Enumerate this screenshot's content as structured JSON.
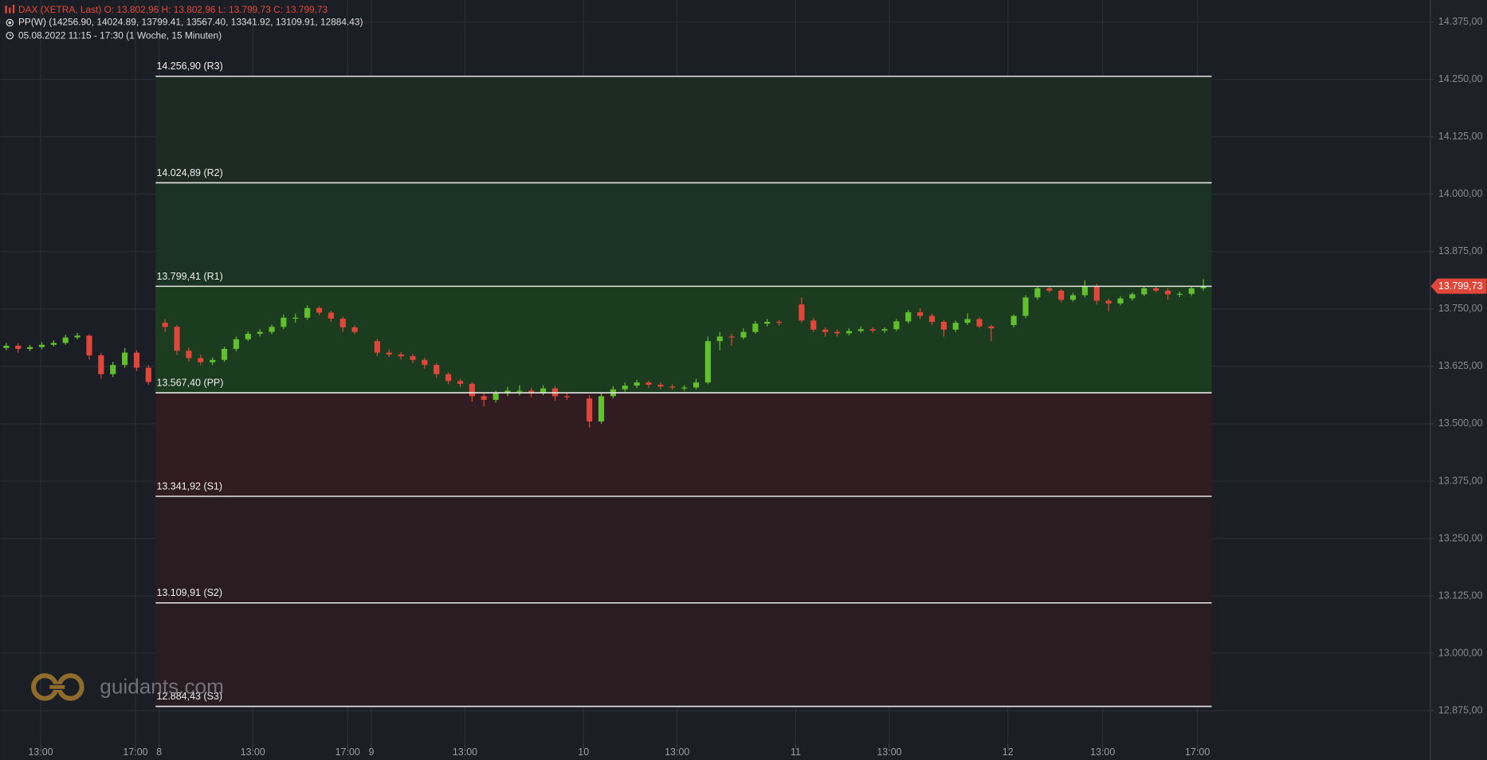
{
  "chart_data": {
    "type": "candlestick",
    "title": "DAX (XETRA, Last)  O: 13.802,96  H: 13.802,96  L: 13.799,73  C: 13.799,73",
    "subtitle": "PP(W)  (14256.90, 14024.89, 13799.41, 13567.40, 13341.92, 13109.91, 12884.43)",
    "period": "05.08.2022 11:15 - 17:30   (1 Woche, 15 Minuten)",
    "watermark": "guidants.com",
    "up_color": "#62bf2e",
    "down_color": "#e0473a",
    "grid": true,
    "xlim": [
      0,
      120.6
    ],
    "ylim": [
      12813,
      14423
    ],
    "xticks": [
      {
        "value": 3.4,
        "label": "13:00"
      },
      {
        "value": 11.4,
        "label": "17:00"
      },
      {
        "value": 13.4,
        "label": "8"
      },
      {
        "value": 21.3,
        "label": "13:00"
      },
      {
        "value": 29.3,
        "label": "17:00"
      },
      {
        "value": 31.3,
        "label": "9"
      },
      {
        "value": 39.2,
        "label": "13:00"
      },
      {
        "value": 49.2,
        "label": "10"
      },
      {
        "value": 57.1,
        "label": "13:00"
      },
      {
        "value": 67.1,
        "label": "11"
      },
      {
        "value": 75.0,
        "label": "13:00"
      },
      {
        "value": 85.0,
        "label": "12"
      },
      {
        "value": 93.0,
        "label": "13:00"
      },
      {
        "value": 101.0,
        "label": "17:00"
      }
    ],
    "yticks": [
      {
        "value": 14375,
        "label": "14.375,00"
      },
      {
        "value": 14250,
        "label": "14.250,00"
      },
      {
        "value": 14125,
        "label": "14.125,00"
      },
      {
        "value": 14000,
        "label": "14.000,00"
      },
      {
        "value": 13875,
        "label": "13.875,00"
      },
      {
        "value": 13750,
        "label": "13.750,00"
      },
      {
        "value": 13625,
        "label": "13.625,00"
      },
      {
        "value": 13500,
        "label": "13.500,00"
      },
      {
        "value": 13375,
        "label": "13.375,00"
      },
      {
        "value": 13250,
        "label": "13.250,00"
      },
      {
        "value": 13125,
        "label": "13.125,00"
      },
      {
        "value": 13000,
        "label": "13.000,00"
      },
      {
        "value": 12875,
        "label": "12.875,00"
      }
    ],
    "last_price": {
      "value": 13799.73,
      "label": "13.799,73"
    },
    "pivot_x": [
      13.1,
      102.2
    ],
    "pivots": [
      {
        "label": "14.256,90 (R3)",
        "value": 14256.9,
        "color": "#1d2b22"
      },
      {
        "label": "14.024,89 (R2)",
        "value": 14024.89,
        "color": "#1b3322"
      },
      {
        "label": "13.799,41 (R1)",
        "value": 13799.41,
        "color": "#1c3c1f"
      },
      {
        "label": "13.567,40 (PP)",
        "value": 13567.4,
        "color": "#3a1d21"
      },
      {
        "label": "13.341,92 (S1)",
        "value": 13341.92,
        "color": "#311c21"
      },
      {
        "label": "13.109,91 (S2)",
        "value": 13109.91,
        "color": "#2a1d22"
      },
      {
        "label": "12.884,43 (S3)",
        "value": 12884.43,
        "color": "#2a1d22"
      }
    ],
    "x": [
      0.5,
      1.5,
      2.5,
      3.5,
      4.5,
      5.5,
      6.5,
      7.5,
      8.5,
      9.5,
      10.5,
      11.5,
      12.5,
      13.9,
      14.9,
      15.9,
      16.9,
      17.9,
      18.9,
      19.9,
      20.9,
      21.9,
      22.9,
      23.9,
      24.9,
      25.9,
      26.9,
      27.9,
      28.9,
      29.9,
      31.8,
      32.8,
      33.8,
      34.8,
      35.8,
      36.8,
      37.8,
      38.8,
      39.8,
      40.8,
      41.8,
      42.8,
      43.8,
      44.8,
      45.8,
      46.8,
      47.8,
      49.7,
      50.7,
      51.7,
      52.7,
      53.7,
      54.7,
      55.7,
      56.7,
      57.7,
      58.7,
      59.7,
      60.7,
      61.7,
      62.7,
      63.7,
      64.7,
      65.7,
      67.6,
      68.6,
      69.6,
      70.6,
      71.6,
      72.6,
      73.6,
      74.6,
      75.6,
      76.6,
      77.6,
      78.6,
      79.6,
      80.6,
      81.6,
      82.6,
      83.6,
      85.5,
      86.5,
      87.5,
      88.5,
      89.5,
      90.5,
      91.5,
      92.5,
      93.5,
      94.5,
      95.5,
      96.5,
      97.5,
      98.5,
      99.5,
      100.5,
      101.5
    ],
    "ohlc": [
      [
        13665,
        13676,
        13660,
        13670
      ],
      [
        13670,
        13675,
        13655,
        13663
      ],
      [
        13663,
        13672,
        13658,
        13667
      ],
      [
        13667,
        13678,
        13662,
        13672
      ],
      [
        13672,
        13682,
        13668,
        13676
      ],
      [
        13676,
        13694,
        13672,
        13688
      ],
      [
        13688,
        13698,
        13684,
        13692
      ],
      [
        13692,
        13695,
        13640,
        13649
      ],
      [
        13649,
        13655,
        13598,
        13608
      ],
      [
        13608,
        13635,
        13602,
        13628
      ],
      [
        13628,
        13665,
        13622,
        13655
      ],
      [
        13655,
        13660,
        13615,
        13622
      ],
      [
        13622,
        13628,
        13585,
        13591
      ],
      [
        13720,
        13728,
        13700,
        13711
      ],
      [
        13711,
        13715,
        13650,
        13659
      ],
      [
        13659,
        13666,
        13636,
        13643
      ],
      [
        13643,
        13650,
        13628,
        13634
      ],
      [
        13634,
        13645,
        13628,
        13639
      ],
      [
        13639,
        13668,
        13635,
        13663
      ],
      [
        13663,
        13690,
        13658,
        13684
      ],
      [
        13684,
        13702,
        13680,
        13696
      ],
      [
        13696,
        13706,
        13690,
        13700
      ],
      [
        13700,
        13716,
        13695,
        13711
      ],
      [
        13711,
        13738,
        13706,
        13731
      ],
      [
        13731,
        13740,
        13720,
        13731
      ],
      [
        13731,
        13758,
        13726,
        13752
      ],
      [
        13752,
        13756,
        13736,
        13742
      ],
      [
        13742,
        13746,
        13722,
        13729
      ],
      [
        13729,
        13733,
        13700,
        13710
      ],
      [
        13710,
        13714,
        13695,
        13700
      ],
      [
        13680,
        13685,
        13648,
        13655
      ],
      [
        13655,
        13662,
        13645,
        13651
      ],
      [
        13651,
        13656,
        13640,
        13647
      ],
      [
        13647,
        13652,
        13632,
        13639
      ],
      [
        13639,
        13644,
        13620,
        13628
      ],
      [
        13628,
        13632,
        13600,
        13608
      ],
      [
        13608,
        13612,
        13586,
        13593
      ],
      [
        13593,
        13598,
        13580,
        13587
      ],
      [
        13587,
        13590,
        13548,
        13560
      ],
      [
        13560,
        13566,
        13538,
        13552
      ],
      [
        13552,
        13572,
        13546,
        13566
      ],
      [
        13566,
        13580,
        13560,
        13572
      ],
      [
        13572,
        13584,
        13562,
        13572
      ],
      [
        13572,
        13578,
        13558,
        13568
      ],
      [
        13568,
        13584,
        13562,
        13577
      ],
      [
        13577,
        13582,
        13550,
        13560
      ],
      [
        13560,
        13566,
        13552,
        13558
      ],
      [
        13555,
        13562,
        13492,
        13505
      ],
      [
        13505,
        13566,
        13500,
        13560
      ],
      [
        13560,
        13582,
        13555,
        13575
      ],
      [
        13575,
        13590,
        13570,
        13583
      ],
      [
        13583,
        13596,
        13578,
        13590
      ],
      [
        13590,
        13594,
        13578,
        13585
      ],
      [
        13585,
        13590,
        13575,
        13581
      ],
      [
        13581,
        13586,
        13574,
        13579
      ],
      [
        13579,
        13584,
        13572,
        13579
      ],
      [
        13579,
        13598,
        13575,
        13590
      ],
      [
        13590,
        13690,
        13586,
        13680
      ],
      [
        13680,
        13700,
        13660,
        13690
      ],
      [
        13690,
        13696,
        13670,
        13688
      ],
      [
        13688,
        13708,
        13684,
        13700
      ],
      [
        13700,
        13724,
        13696,
        13718
      ],
      [
        13718,
        13728,
        13712,
        13722
      ],
      [
        13722,
        13726,
        13714,
        13720
      ],
      [
        13760,
        13775,
        13720,
        13725
      ],
      [
        13725,
        13730,
        13700,
        13705
      ],
      [
        13705,
        13710,
        13690,
        13700
      ],
      [
        13700,
        13706,
        13690,
        13697
      ],
      [
        13697,
        13708,
        13692,
        13702
      ],
      [
        13702,
        13712,
        13698,
        13706
      ],
      [
        13706,
        13710,
        13698,
        13703
      ],
      [
        13703,
        13710,
        13698,
        13706
      ],
      [
        13706,
        13728,
        13702,
        13723
      ],
      [
        13723,
        13748,
        13718,
        13743
      ],
      [
        13743,
        13752,
        13728,
        13735
      ],
      [
        13735,
        13740,
        13715,
        13722
      ],
      [
        13722,
        13726,
        13690,
        13705
      ],
      [
        13705,
        13725,
        13700,
        13720
      ],
      [
        13720,
        13740,
        13715,
        13728
      ],
      [
        13728,
        13732,
        13708,
        13712
      ],
      [
        13712,
        13716,
        13680,
        13708
      ],
      [
        13715,
        13738,
        13710,
        13735
      ],
      [
        13735,
        13780,
        13730,
        13775
      ],
      [
        13775,
        13800,
        13770,
        13795
      ],
      [
        13795,
        13800,
        13786,
        13790
      ],
      [
        13790,
        13794,
        13765,
        13770
      ],
      [
        13770,
        13785,
        13766,
        13780
      ],
      [
        13780,
        13812,
        13775,
        13800
      ],
      [
        13800,
        13805,
        13760,
        13768
      ],
      [
        13768,
        13772,
        13745,
        13762
      ],
      [
        13762,
        13778,
        13758,
        13773
      ],
      [
        13773,
        13786,
        13768,
        13782
      ],
      [
        13782,
        13798,
        13778,
        13795
      ],
      [
        13795,
        13800,
        13786,
        13790
      ],
      [
        13790,
        13795,
        13770,
        13782
      ],
      [
        13782,
        13788,
        13776,
        13783
      ],
      [
        13783,
        13800,
        13778,
        13795
      ],
      [
        13795,
        13815,
        13790,
        13799.73
      ]
    ]
  }
}
